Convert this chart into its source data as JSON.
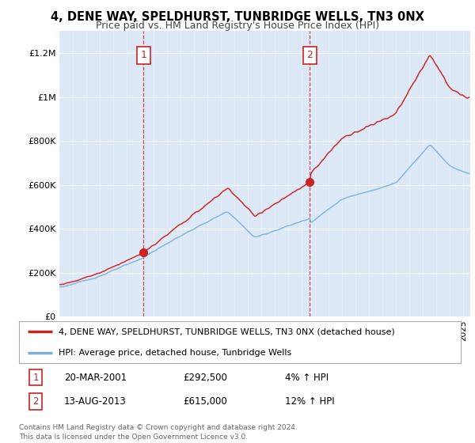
{
  "title": "4, DENE WAY, SPELDHURST, TUNBRIDGE WELLS, TN3 0NX",
  "subtitle": "Price paid vs. HM Land Registry's House Price Index (HPI)",
  "background_color": "#ffffff",
  "plot_bg_color": "#dce8f5",
  "ylim": [
    0,
    1300000
  ],
  "yticks": [
    0,
    200000,
    400000,
    600000,
    800000,
    1000000,
    1200000
  ],
  "ytick_labels": [
    "£0",
    "£200K",
    "£400K",
    "£600K",
    "£800K",
    "£1M",
    "£1.2M"
  ],
  "legend_line1": "4, DENE WAY, SPELDHURST, TUNBRIDGE WELLS, TN3 0NX (detached house)",
  "legend_line2": "HPI: Average price, detached house, Tunbridge Wells",
  "line1_color": "#cc2222",
  "line2_color": "#7aaed6",
  "purchase1_x": 2001.25,
  "purchase1_price": 292500,
  "purchase1_label": "1",
  "purchase1_text": "20-MAR-2001",
  "purchase1_price_text": "£292,500",
  "purchase1_hpi_text": "4% ↑ HPI",
  "purchase2_x": 2013.583,
  "purchase2_price": 615000,
  "purchase2_label": "2",
  "purchase2_text": "13-AUG-2013",
  "purchase2_price_text": "£615,000",
  "purchase2_hpi_text": "12% ↑ HPI",
  "footer_text": "Contains HM Land Registry data © Crown copyright and database right 2024.\nThis data is licensed under the Open Government Licence v3.0.",
  "xmin": 1995.0,
  "xmax": 2025.5
}
